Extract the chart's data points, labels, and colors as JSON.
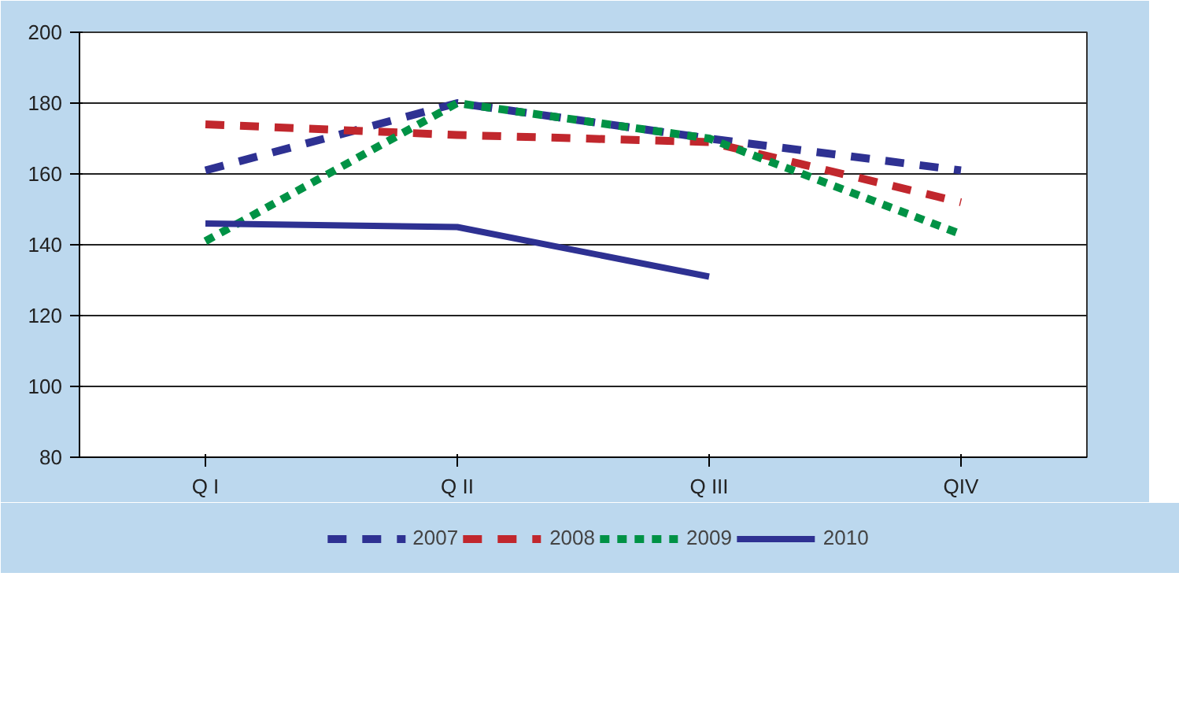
{
  "chart_data": {
    "type": "line",
    "categories": [
      "Q I",
      "Q II",
      "Q III",
      "QIV"
    ],
    "series": [
      {
        "name": "2007",
        "color": "#2e3192",
        "values": [
          161,
          180,
          170,
          161
        ],
        "line_style": "dashed"
      },
      {
        "name": "2008",
        "color": "#c1272d",
        "values": [
          174,
          171,
          169,
          152
        ],
        "line_style": "dashed"
      },
      {
        "name": "2009",
        "color": "#009245",
        "values": [
          141,
          180,
          170,
          143
        ],
        "line_style": "dotted"
      },
      {
        "name": "2010",
        "color": "#2e3192",
        "values": [
          146,
          145,
          131,
          null
        ],
        "line_style": "solid"
      }
    ],
    "ylim": [
      80,
      200
    ],
    "yticks": [
      80,
      100,
      120,
      140,
      160,
      180,
      200
    ],
    "grid": "y",
    "legend": "bottom",
    "marker": "none"
  }
}
